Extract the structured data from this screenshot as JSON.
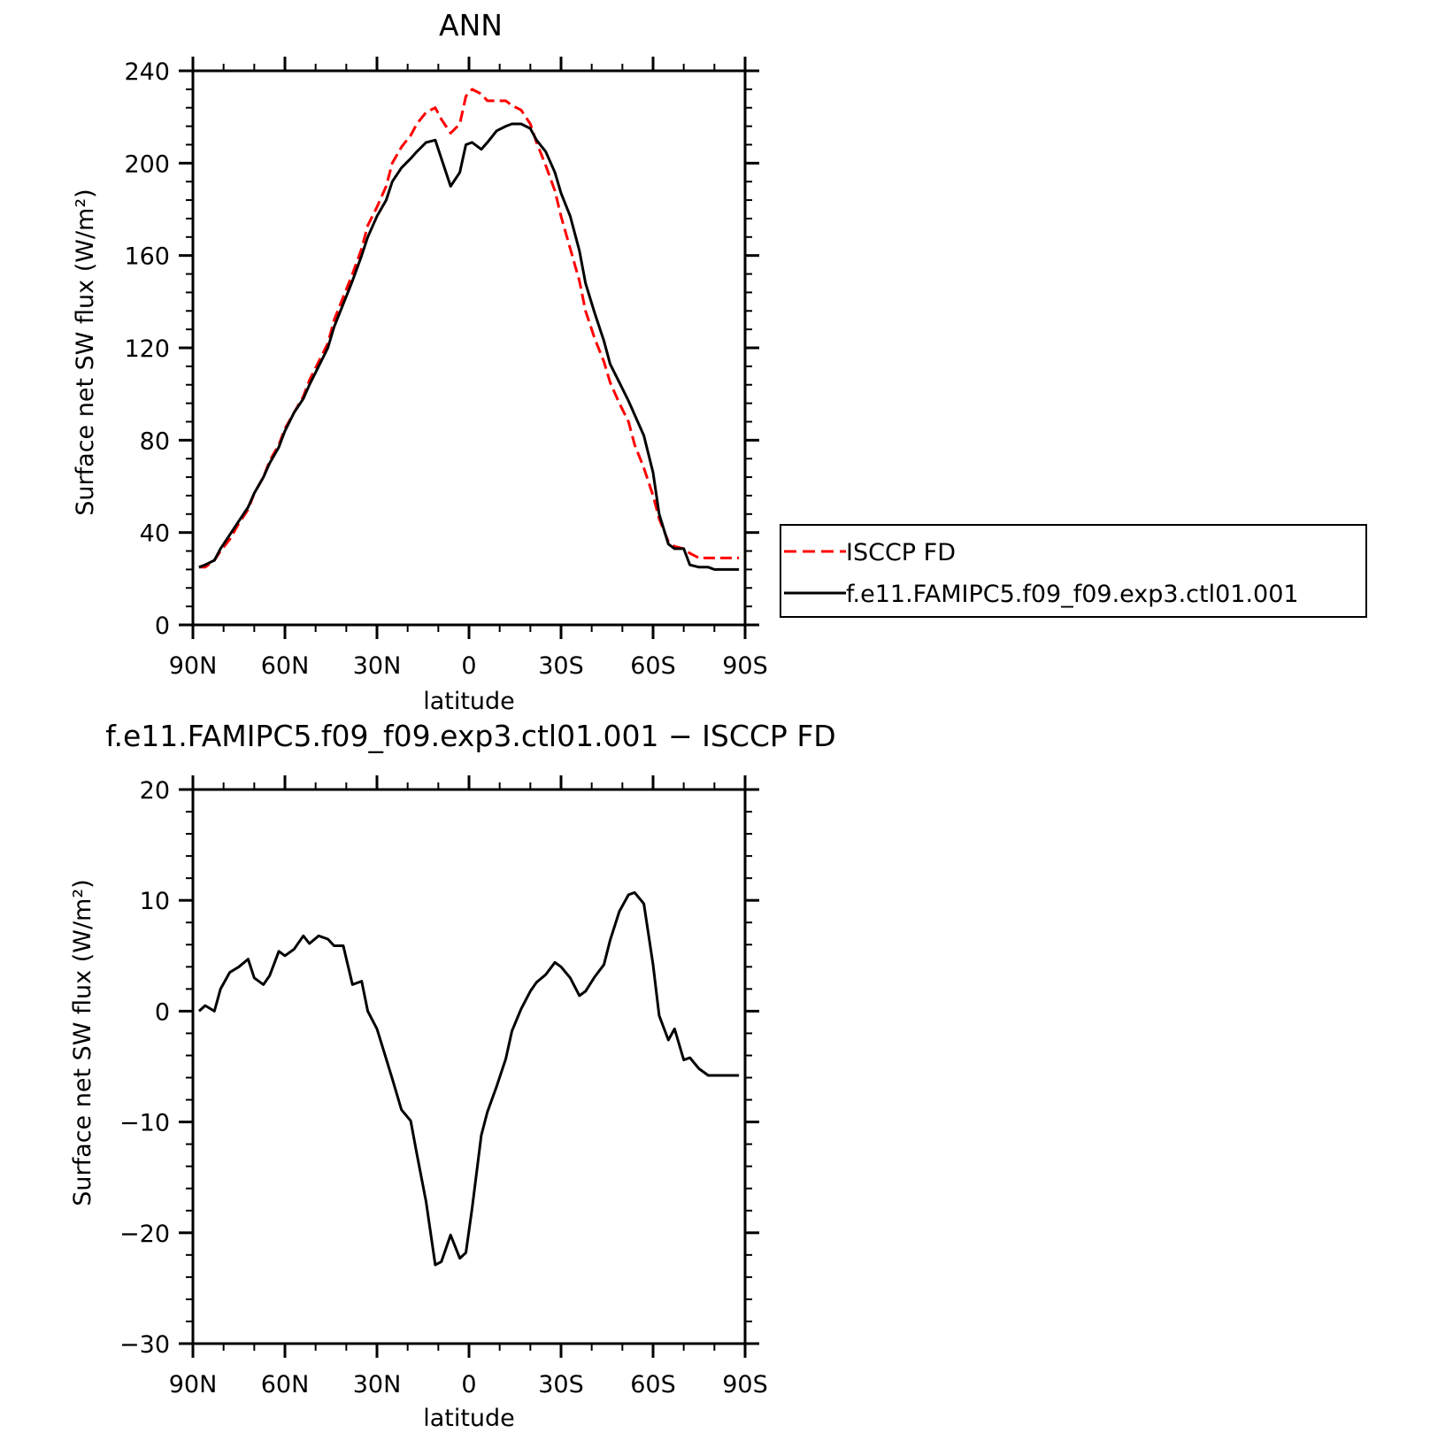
{
  "chart_data": [
    {
      "type": "line",
      "title": "ANN",
      "xlabel": "latitude",
      "ylabel": "Surface net SW flux (W/m²)",
      "xlim": [
        90,
        -90
      ],
      "ylim": [
        0,
        240
      ],
      "xticks": [
        90,
        60,
        30,
        0,
        -30,
        -60,
        -90
      ],
      "xtick_labels": [
        "90N",
        "60N",
        "30N",
        "0",
        "30S",
        "60S",
        "90S"
      ],
      "yticks": [
        0,
        40,
        80,
        120,
        160,
        200,
        240
      ],
      "ytick_labels": [
        "0",
        "40",
        "80",
        "120",
        "160",
        "200",
        "240"
      ],
      "legend": {
        "placement": "right, outside plot",
        "entries": [
          "ISCCP FD",
          "f.e11.FAMIPC5.f09_f09.exp3.ctl01.001"
        ]
      },
      "series": [
        {
          "name": "ISCCP FD",
          "color": "#ff0000",
          "dash": "dashed",
          "x": [
            88,
            86,
            83,
            81,
            78,
            75,
            72,
            70,
            67,
            65,
            62,
            60,
            57,
            54,
            52,
            49,
            46,
            44,
            41,
            38,
            35,
            33,
            30,
            27,
            25,
            22,
            19,
            17,
            14,
            11,
            9,
            6,
            3,
            1,
            -1,
            -4,
            -6,
            -9,
            -12,
            -14,
            -17,
            -20,
            -22,
            -25,
            -28,
            -30,
            -33,
            -36,
            -38,
            -41,
            -44,
            -46,
            -49,
            -52,
            -54,
            -57,
            -60,
            -62,
            -65,
            -67,
            -70,
            -72,
            -75,
            -78,
            -80,
            -83,
            -86,
            -88
          ],
          "y": [
            25,
            25,
            28,
            32,
            37,
            44,
            50,
            57,
            64,
            71,
            78,
            85,
            92,
            99,
            106,
            114,
            122,
            132,
            142,
            152,
            163,
            173,
            181,
            190,
            200,
            207,
            212,
            217,
            222,
            224,
            219,
            213,
            217,
            229,
            232,
            230,
            227,
            227,
            227,
            225,
            223,
            217,
            209,
            199,
            188,
            177,
            163,
            149,
            136,
            124,
            114,
            105,
            96,
            88,
            78,
            68,
            56,
            46,
            36,
            34,
            33,
            31,
            29,
            29,
            29,
            29,
            29,
            29
          ]
        },
        {
          "name": "f.e11.FAMIPC5.f09_f09.exp3.ctl01.001",
          "color": "#000000",
          "dash": "solid",
          "x": [
            88,
            86,
            83,
            81,
            78,
            75,
            72,
            70,
            67,
            65,
            62,
            60,
            57,
            54,
            52,
            49,
            46,
            44,
            41,
            38,
            35,
            33,
            30,
            27,
            25,
            22,
            19,
            17,
            14,
            11,
            9,
            6,
            3,
            1,
            -1,
            -4,
            -6,
            -9,
            -12,
            -14,
            -17,
            -20,
            -22,
            -25,
            -28,
            -30,
            -33,
            -36,
            -38,
            -41,
            -44,
            -46,
            -49,
            -52,
            -54,
            -57,
            -60,
            -62,
            -65,
            -67,
            -70,
            -72,
            -75,
            -78,
            -80,
            -83,
            -86,
            -88
          ],
          "y": [
            25,
            26,
            28,
            33,
            39,
            45,
            51,
            57,
            64,
            70,
            77,
            84,
            92,
            98,
            104,
            112,
            120,
            129,
            139,
            149,
            160,
            168,
            177,
            184,
            192,
            198,
            202,
            205,
            209,
            210,
            202,
            190,
            196,
            208,
            209,
            206,
            209,
            214,
            216,
            217,
            217,
            215,
            210,
            205,
            196,
            187,
            177,
            162,
            148,
            135,
            123,
            113,
            105,
            97,
            91,
            82,
            66,
            48,
            35,
            33,
            33,
            26,
            25,
            25,
            24,
            24,
            24,
            24
          ]
        }
      ]
    },
    {
      "type": "line",
      "title": "f.e11.FAMIPC5.f09_f09.exp3.ctl01.001 − ISCCP FD",
      "xlabel": "latitude",
      "ylabel": "Surface net SW flux (W/m²)",
      "xlim": [
        90,
        -90
      ],
      "ylim": [
        -30,
        20
      ],
      "xticks": [
        90,
        60,
        30,
        0,
        -30,
        -60,
        -90
      ],
      "xtick_labels": [
        "90N",
        "60N",
        "30N",
        "0",
        "30S",
        "60S",
        "90S"
      ],
      "yticks": [
        -30,
        -20,
        -10,
        0,
        10,
        20
      ],
      "ytick_labels": [
        "−30",
        "−20",
        "−10",
        "0",
        "10",
        "20"
      ],
      "series": [
        {
          "color": "#000000",
          "dash": "solid",
          "x": [
            88,
            86,
            83,
            81,
            78,
            75,
            72,
            70,
            67,
            65,
            62,
            60,
            57,
            54,
            52,
            49,
            46,
            44,
            41,
            38,
            35,
            33,
            30,
            27,
            25,
            22,
            19,
            17,
            14,
            11,
            9,
            6,
            3,
            1,
            -1,
            -4,
            -6,
            -9,
            -12,
            -14,
            -17,
            -20,
            -22,
            -25,
            -28,
            -30,
            -33,
            -36,
            -38,
            -41,
            -44,
            -46,
            -49,
            -52,
            -54,
            -57,
            -60,
            -62,
            -65,
            -67,
            -70,
            -72,
            -75,
            -78,
            -80,
            -83,
            -86,
            -88
          ],
          "y": [
            0,
            0.5,
            0,
            2,
            3.5,
            4,
            4.7,
            3,
            2.4,
            3.2,
            5.4,
            5,
            5.6,
            6.8,
            6.1,
            6.8,
            6.5,
            5.9,
            5.9,
            2.4,
            2.7,
            0,
            -1.6,
            -4.3,
            -6.1,
            -8.9,
            -9.9,
            -12.9,
            -17.2,
            -22.9,
            -22.6,
            -20.2,
            -22.3,
            -21.8,
            -17.8,
            -11.2,
            -9.1,
            -6.8,
            -4.3,
            -1.8,
            0.2,
            1.8,
            2.6,
            3.3,
            4.4,
            4,
            3,
            1.4,
            1.8,
            3.1,
            4.2,
            6.4,
            9,
            10.5,
            10.7,
            9.7,
            4.2,
            -0.4,
            -2.6,
            -1.6,
            -4.4,
            -4.2,
            -5.2,
            -5.8,
            -5.8,
            -5.8,
            -5.8,
            -5.8
          ]
        }
      ]
    }
  ]
}
